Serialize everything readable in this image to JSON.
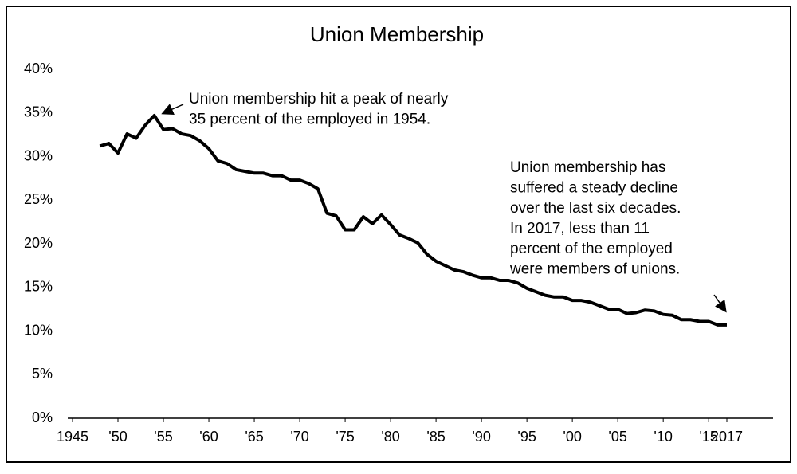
{
  "chart_data": {
    "type": "line",
    "title": "Union Membership",
    "x": [
      1948,
      1949,
      1950,
      1951,
      1952,
      1953,
      1954,
      1955,
      1956,
      1957,
      1958,
      1959,
      1960,
      1961,
      1962,
      1963,
      1964,
      1965,
      1966,
      1967,
      1968,
      1969,
      1970,
      1971,
      1972,
      1973,
      1974,
      1975,
      1976,
      1977,
      1978,
      1979,
      1980,
      1981,
      1982,
      1983,
      1984,
      1985,
      1986,
      1987,
      1988,
      1989,
      1990,
      1991,
      1992,
      1993,
      1994,
      1995,
      1996,
      1997,
      1998,
      1999,
      2000,
      2001,
      2002,
      2003,
      2004,
      2005,
      2006,
      2007,
      2008,
      2009,
      2010,
      2011,
      2012,
      2013,
      2014,
      2015,
      2016,
      2017
    ],
    "series": [
      {
        "name": "Union membership",
        "color": "#000000",
        "values": [
          31.2,
          31.5,
          30.4,
          32.6,
          32.1,
          33.6,
          34.7,
          33.1,
          33.2,
          32.6,
          32.4,
          31.8,
          30.9,
          29.5,
          29.2,
          28.5,
          28.3,
          28.1,
          28.1,
          27.8,
          27.8,
          27.3,
          27.3,
          26.9,
          26.3,
          23.5,
          23.2,
          21.6,
          21.6,
          23.1,
          22.3,
          23.3,
          22.2,
          21.0,
          20.6,
          20.1,
          18.8,
          18.0,
          17.5,
          17.0,
          16.8,
          16.4,
          16.1,
          16.1,
          15.8,
          15.8,
          15.5,
          14.9,
          14.5,
          14.1,
          13.9,
          13.9,
          13.5,
          13.5,
          13.3,
          12.9,
          12.5,
          12.5,
          12.0,
          12.1,
          12.4,
          12.3,
          11.9,
          11.8,
          11.3,
          11.3,
          11.1,
          11.1,
          10.7,
          10.7
        ]
      }
    ],
    "xlim": [
      1945,
      2022
    ],
    "xticks": [
      {
        "value": 1945,
        "label": "1945"
      },
      {
        "value": 1950,
        "label": "'50"
      },
      {
        "value": 1955,
        "label": "'55"
      },
      {
        "value": 1960,
        "label": "'60"
      },
      {
        "value": 1965,
        "label": "'65"
      },
      {
        "value": 1970,
        "label": "'70"
      },
      {
        "value": 1975,
        "label": "'75"
      },
      {
        "value": 1980,
        "label": "'80"
      },
      {
        "value": 1985,
        "label": "'85"
      },
      {
        "value": 1990,
        "label": "'90"
      },
      {
        "value": 1995,
        "label": "'95"
      },
      {
        "value": 2000,
        "label": "'00"
      },
      {
        "value": 2005,
        "label": "'05"
      },
      {
        "value": 2010,
        "label": "'10"
      },
      {
        "value": 2015,
        "label": "'15"
      },
      2017
    ],
    "ylim": [
      0,
      40
    ],
    "yticks": [
      {
        "value": 0,
        "label": "0%"
      },
      {
        "value": 5,
        "label": "5%"
      },
      {
        "value": 10,
        "label": "10%"
      },
      {
        "value": 15,
        "label": "15%"
      },
      {
        "value": 20,
        "label": "20%"
      },
      {
        "value": 25,
        "label": "25%"
      },
      {
        "value": 30,
        "label": "30%"
      },
      {
        "value": 35,
        "label": "35%"
      },
      {
        "value": 40,
        "label": "40%"
      }
    ],
    "grid": false,
    "annotations": [
      {
        "lines": [
          "Union membership hit a peak of nearly",
          "35 percent of the employed in 1954."
        ]
      },
      {
        "lines": [
          "Union membership has",
          "suffered a steady decline",
          "over the last six decades.",
          "In 2017, less than 11",
          "percent of the employed",
          "were members of unions."
        ]
      }
    ]
  }
}
